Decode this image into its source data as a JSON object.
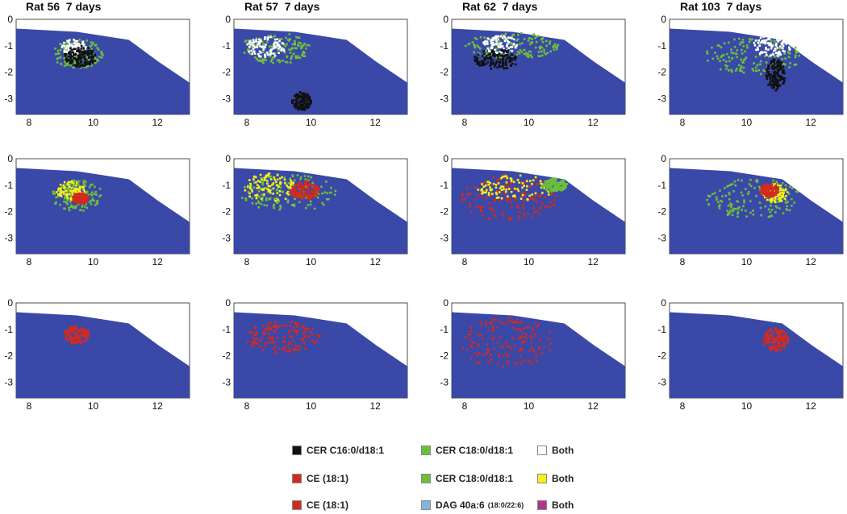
{
  "columns": [
    "Rat 56  7 days",
    "Rat 57  7 days",
    "Rat 62  7 days",
    "Rat 103  7 days"
  ],
  "colors": {
    "background": "#3a48a8",
    "black": "#111111",
    "white": "#ffffff",
    "green": "#6cbf3a",
    "red": "#d42a1e",
    "yellow": "#f5f01c",
    "lightblue": "#7fb6e0",
    "magenta": "#b0358c"
  },
  "legend": {
    "rows": [
      [
        {
          "label": "CER C16:0/d18:1",
          "color": "#111111"
        },
        {
          "label": "CER C18:0/d18:1",
          "color": "#6cbf3a"
        },
        {
          "label": "Both",
          "color": "#ffffff"
        }
      ],
      [
        {
          "label": "CE (18:1)",
          "color": "#d42a1e"
        },
        {
          "label": "CER C18:0/d18:1",
          "color": "#6cbf3a"
        },
        {
          "label": "Both",
          "color": "#f5f01c"
        }
      ],
      [
        {
          "label": "CE (18:1)",
          "color": "#d42a1e"
        },
        {
          "label": "DAG 40a:6",
          "suffix": "(18:0/22:6)",
          "color": "#7fb6e0"
        },
        {
          "label": "Both",
          "color": "#b0358c"
        }
      ]
    ]
  },
  "chart_data": [
    {
      "type": "scatter",
      "title": "Rat 56  7 days",
      "row": 1,
      "col": 1,
      "xlim": [
        7.6,
        13
      ],
      "ylim": [
        -3.6,
        0
      ],
      "xticks": [
        8,
        10,
        12
      ],
      "yticks": [
        0,
        -1,
        -2,
        -3
      ],
      "categories": [
        "CER C16:0/d18:1",
        "CER C18:0/d18:1",
        "Both"
      ],
      "regions": [
        {
          "category": "CER C18:0/d18:1",
          "cx": 9.5,
          "cy": -1.3,
          "rx": 0.8,
          "ry": 0.55
        },
        {
          "category": "Both",
          "cx": 9.4,
          "cy": -1.05,
          "rx": 0.4,
          "ry": 0.3
        },
        {
          "category": "CER C16:0/d18:1",
          "cx": 9.6,
          "cy": -1.4,
          "rx": 0.5,
          "ry": 0.4
        }
      ]
    },
    {
      "type": "scatter",
      "title": "Rat 57  7 days",
      "row": 1,
      "col": 2,
      "xlim": [
        7.6,
        13
      ],
      "ylim": [
        -3.6,
        0
      ],
      "xticks": [
        8,
        10,
        12
      ],
      "yticks": [
        0,
        -1,
        -2,
        -3
      ],
      "categories": [
        "CER C16:0/d18:1",
        "CER C18:0/d18:1",
        "Both"
      ],
      "regions": [
        {
          "category": "CER C18:0/d18:1",
          "cx": 8.9,
          "cy": -1.1,
          "rx": 1.1,
          "ry": 0.6
        },
        {
          "category": "Both",
          "cx": 8.6,
          "cy": -1.05,
          "rx": 0.6,
          "ry": 0.4
        },
        {
          "category": "CER C16:0/d18:1",
          "cx": 9.7,
          "cy": -3.1,
          "rx": 0.3,
          "ry": 0.35
        }
      ]
    },
    {
      "type": "scatter",
      "title": "Rat 62  7 days",
      "row": 1,
      "col": 3,
      "xlim": [
        7.6,
        13
      ],
      "ylim": [
        -3.6,
        0
      ],
      "xticks": [
        8,
        10,
        12
      ],
      "yticks": [
        0,
        -1,
        -2,
        -3
      ],
      "categories": [
        "CER C16:0/d18:1",
        "CER C18:0/d18:1",
        "Both"
      ],
      "regions": [
        {
          "category": "CER C18:0/d18:1",
          "cx": 9.5,
          "cy": -1.0,
          "rx": 1.5,
          "ry": 0.5
        },
        {
          "category": "Both",
          "cx": 9.1,
          "cy": -0.95,
          "rx": 0.55,
          "ry": 0.35
        },
        {
          "category": "CER C16:0/d18:1",
          "cx": 9.0,
          "cy": -1.5,
          "rx": 0.7,
          "ry": 0.4
        }
      ]
    },
    {
      "type": "scatter",
      "title": "Rat 103  7 days",
      "row": 1,
      "col": 4,
      "xlim": [
        7.6,
        13
      ],
      "ylim": [
        -3.6,
        0
      ],
      "xticks": [
        8,
        10,
        12
      ],
      "yticks": [
        0,
        -1,
        -2,
        -3
      ],
      "categories": [
        "CER C16:0/d18:1",
        "CER C18:0/d18:1",
        "Both"
      ],
      "regions": [
        {
          "category": "CER C18:0/d18:1",
          "cx": 10.2,
          "cy": -1.4,
          "rx": 1.5,
          "ry": 0.7
        },
        {
          "category": "Both",
          "cx": 10.8,
          "cy": -1.0,
          "rx": 0.6,
          "ry": 0.4
        },
        {
          "category": "CER C16:0/d18:1",
          "cx": 10.9,
          "cy": -2.1,
          "rx": 0.3,
          "ry": 0.6
        }
      ]
    },
    {
      "type": "scatter",
      "title": "",
      "row": 2,
      "col": 1,
      "xlim": [
        7.6,
        13
      ],
      "ylim": [
        -3.6,
        0
      ],
      "xticks": [
        8,
        10,
        12
      ],
      "yticks": [
        0,
        -1,
        -2,
        -3
      ],
      "categories": [
        "CE (18:1)",
        "CER C18:0/d18:1",
        "Both"
      ],
      "regions": [
        {
          "category": "CER C18:0/d18:1",
          "cx": 9.5,
          "cy": -1.4,
          "rx": 0.8,
          "ry": 0.6
        },
        {
          "category": "Both",
          "cx": 9.3,
          "cy": -1.2,
          "rx": 0.45,
          "ry": 0.35
        },
        {
          "category": "CE (18:1)",
          "cx": 9.6,
          "cy": -1.5,
          "rx": 0.25,
          "ry": 0.2
        }
      ]
    },
    {
      "type": "scatter",
      "title": "",
      "row": 2,
      "col": 2,
      "xlim": [
        7.6,
        13
      ],
      "ylim": [
        -3.6,
        0
      ],
      "xticks": [
        8,
        10,
        12
      ],
      "yticks": [
        0,
        -1,
        -2,
        -3
      ],
      "categories": [
        "CE (18:1)",
        "CER C18:0/d18:1",
        "Both"
      ],
      "regions": [
        {
          "category": "CER C18:0/d18:1",
          "cx": 9.3,
          "cy": -1.3,
          "rx": 1.5,
          "ry": 0.7
        },
        {
          "category": "Both",
          "cx": 8.7,
          "cy": -1.1,
          "rx": 0.8,
          "ry": 0.55
        },
        {
          "category": "CE (18:1)",
          "cx": 9.8,
          "cy": -1.2,
          "rx": 0.45,
          "ry": 0.35
        }
      ]
    },
    {
      "type": "scatter",
      "title": "",
      "row": 2,
      "col": 3,
      "xlim": [
        7.6,
        13
      ],
      "ylim": [
        -3.6,
        0
      ],
      "xticks": [
        8,
        10,
        12
      ],
      "yticks": [
        0,
        -1,
        -2,
        -3
      ],
      "categories": [
        "CE (18:1)",
        "CER C18:0/d18:1",
        "Both"
      ],
      "regions": [
        {
          "category": "CE (18:1)",
          "cx": 9.4,
          "cy": -1.5,
          "rx": 1.5,
          "ry": 0.9
        },
        {
          "category": "Both",
          "cx": 9.6,
          "cy": -1.1,
          "rx": 1.2,
          "ry": 0.5
        },
        {
          "category": "CER C18:0/d18:1",
          "cx": 10.8,
          "cy": -1.0,
          "rx": 0.4,
          "ry": 0.25
        }
      ]
    },
    {
      "type": "scatter",
      "title": "",
      "row": 2,
      "col": 4,
      "xlim": [
        7.6,
        13
      ],
      "ylim": [
        -3.6,
        0
      ],
      "xticks": [
        8,
        10,
        12
      ],
      "yticks": [
        0,
        -1,
        -2,
        -3
      ],
      "categories": [
        "CE (18:1)",
        "CER C18:0/d18:1",
        "Both"
      ],
      "regions": [
        {
          "category": "CER C18:0/d18:1",
          "cx": 10.2,
          "cy": -1.5,
          "rx": 1.5,
          "ry": 0.75
        },
        {
          "category": "Both",
          "cx": 10.9,
          "cy": -1.3,
          "rx": 0.4,
          "ry": 0.35
        },
        {
          "category": "CE (18:1)",
          "cx": 10.7,
          "cy": -1.2,
          "rx": 0.3,
          "ry": 0.25
        }
      ]
    },
    {
      "type": "scatter",
      "title": "",
      "row": 3,
      "col": 1,
      "xlim": [
        7.6,
        13
      ],
      "ylim": [
        -3.6,
        0
      ],
      "xticks": [
        8,
        10,
        12
      ],
      "yticks": [
        0,
        -1,
        -2,
        -3
      ],
      "categories": [
        "CE (18:1)",
        "DAG 40a:6",
        "Both"
      ],
      "regions": [
        {
          "category": "CE (18:1)",
          "cx": 9.5,
          "cy": -1.2,
          "rx": 0.4,
          "ry": 0.35
        }
      ]
    },
    {
      "type": "scatter",
      "title": "",
      "row": 3,
      "col": 2,
      "xlim": [
        7.6,
        13
      ],
      "ylim": [
        -3.6,
        0
      ],
      "xticks": [
        8,
        10,
        12
      ],
      "yticks": [
        0,
        -1,
        -2,
        -3
      ],
      "categories": [
        "CE (18:1)",
        "DAG 40a:6",
        "Both"
      ],
      "regions": [
        {
          "category": "CE (18:1)",
          "cx": 9.1,
          "cy": -1.3,
          "rx": 1.2,
          "ry": 0.6
        }
      ]
    },
    {
      "type": "scatter",
      "title": "",
      "row": 3,
      "col": 3,
      "xlim": [
        7.6,
        13
      ],
      "ylim": [
        -3.6,
        0
      ],
      "xticks": [
        8,
        10,
        12
      ],
      "yticks": [
        0,
        -1,
        -2,
        -3
      ],
      "categories": [
        "CE (18:1)",
        "DAG 40a:6",
        "Both"
      ],
      "regions": [
        {
          "category": "CE (18:1)",
          "cx": 9.3,
          "cy": -1.5,
          "rx": 1.5,
          "ry": 0.95
        }
      ]
    },
    {
      "type": "scatter",
      "title": "",
      "row": 3,
      "col": 4,
      "xlim": [
        7.6,
        13
      ],
      "ylim": [
        -3.6,
        0
      ],
      "xticks": [
        8,
        10,
        12
      ],
      "yticks": [
        0,
        -1,
        -2,
        -3
      ],
      "categories": [
        "CE (18:1)",
        "DAG 40a:6",
        "Both"
      ],
      "regions": [
        {
          "category": "CE (18:1)",
          "cx": 10.9,
          "cy": -1.4,
          "rx": 0.4,
          "ry": 0.45
        }
      ]
    }
  ]
}
